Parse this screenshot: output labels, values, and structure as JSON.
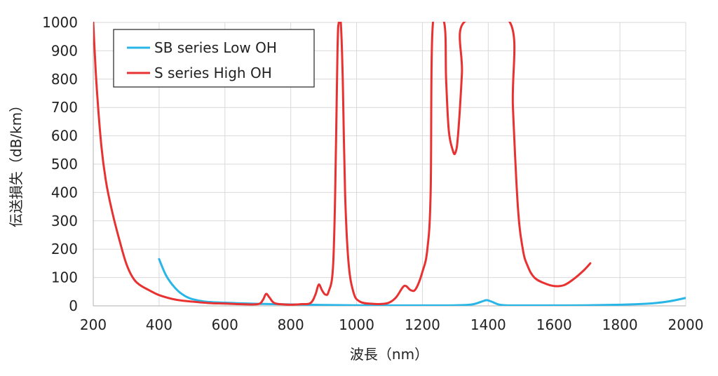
{
  "chart_data": {
    "type": "line",
    "title": "",
    "xlabel": "波長（nm）",
    "ylabel": "伝送損失（dB/km）",
    "xlim": [
      200,
      2000
    ],
    "ylim": [
      0,
      1000
    ],
    "x_ticks": [
      "200",
      "400",
      "600",
      "800",
      "1000",
      "1200",
      "1400",
      "1600",
      "1800",
      "2000"
    ],
    "y_ticks": [
      "0",
      "100",
      "200",
      "300",
      "400",
      "500",
      "600",
      "700",
      "800",
      "900",
      "1000"
    ],
    "grid": true,
    "legend_position": "top-left",
    "series": [
      {
        "name": "SB series Low OH",
        "color": "#29b6e6",
        "points": [
          [
            400,
            165
          ],
          [
            420,
            110
          ],
          [
            440,
            75
          ],
          [
            460,
            50
          ],
          [
            480,
            34
          ],
          [
            500,
            24
          ],
          [
            540,
            15
          ],
          [
            600,
            11
          ],
          [
            650,
            9
          ],
          [
            700,
            7
          ],
          [
            800,
            5
          ],
          [
            900,
            3
          ],
          [
            1000,
            2
          ],
          [
            1100,
            1.5
          ],
          [
            1200,
            1.5
          ],
          [
            1300,
            2
          ],
          [
            1350,
            5
          ],
          [
            1380,
            15
          ],
          [
            1395,
            20
          ],
          [
            1410,
            15
          ],
          [
            1440,
            3
          ],
          [
            1500,
            1.5
          ],
          [
            1600,
            1.5
          ],
          [
            1700,
            2
          ],
          [
            1800,
            4
          ],
          [
            1850,
            6
          ],
          [
            1900,
            9
          ],
          [
            1950,
            16
          ],
          [
            2000,
            28
          ]
        ]
      },
      {
        "name": "S series High OH",
        "color": "#e83131",
        "points": [
          [
            200,
            1000
          ],
          [
            210,
            780
          ],
          [
            225,
            560
          ],
          [
            240,
            430
          ],
          [
            260,
            320
          ],
          [
            280,
            230
          ],
          [
            300,
            150
          ],
          [
            320,
            100
          ],
          [
            340,
            75
          ],
          [
            370,
            55
          ],
          [
            400,
            38
          ],
          [
            450,
            22
          ],
          [
            500,
            15
          ],
          [
            550,
            10
          ],
          [
            600,
            8
          ],
          [
            650,
            6
          ],
          [
            700,
            6
          ],
          [
            715,
            20
          ],
          [
            725,
            42
          ],
          [
            735,
            30
          ],
          [
            750,
            10
          ],
          [
            780,
            5
          ],
          [
            800,
            4
          ],
          [
            830,
            6
          ],
          [
            860,
            10
          ],
          [
            875,
            40
          ],
          [
            885,
            75
          ],
          [
            895,
            55
          ],
          [
            905,
            40
          ],
          [
            915,
            50
          ],
          [
            928,
            130
          ],
          [
            935,
            400
          ],
          [
            942,
            900
          ],
          [
            946,
            1000
          ],
          [
            952,
            1000
          ],
          [
            958,
            800
          ],
          [
            965,
            400
          ],
          [
            975,
            160
          ],
          [
            990,
            50
          ],
          [
            1010,
            15
          ],
          [
            1050,
            7
          ],
          [
            1080,
            7
          ],
          [
            1100,
            12
          ],
          [
            1120,
            30
          ],
          [
            1140,
            65
          ],
          [
            1150,
            70
          ],
          [
            1165,
            55
          ],
          [
            1180,
            60
          ],
          [
            1200,
            120
          ],
          [
            1215,
            200
          ],
          [
            1225,
            400
          ],
          [
            1232,
            1000
          ],
          [
            1266,
            1000
          ],
          [
            1272,
            800
          ],
          [
            1280,
            620
          ],
          [
            1292,
            550
          ],
          [
            1300,
            540
          ],
          [
            1308,
            600
          ],
          [
            1320,
            820
          ],
          [
            1326,
            1000
          ],
          [
            1466,
            1000
          ],
          [
            1475,
            700
          ],
          [
            1490,
            350
          ],
          [
            1505,
            200
          ],
          [
            1520,
            140
          ],
          [
            1540,
            100
          ],
          [
            1570,
            80
          ],
          [
            1600,
            70
          ],
          [
            1630,
            73
          ],
          [
            1660,
            95
          ],
          [
            1690,
            125
          ],
          [
            1710,
            150
          ]
        ]
      }
    ]
  }
}
